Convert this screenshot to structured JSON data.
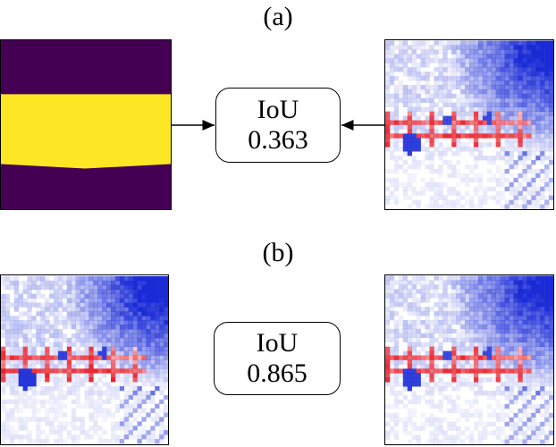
{
  "row_a": {
    "label": "(a)",
    "iou_label": "IoU",
    "iou_value": "0.363",
    "mask_colors": {
      "background": "#440154",
      "foreground": "#fde725"
    }
  },
  "row_b": {
    "label": "(b)",
    "iou_label": "IoU",
    "iou_value": "0.865"
  },
  "heatmap_colors": {
    "positive": "#e8202a",
    "negative": "#1a2bd6",
    "neutral": "#ffffff"
  }
}
